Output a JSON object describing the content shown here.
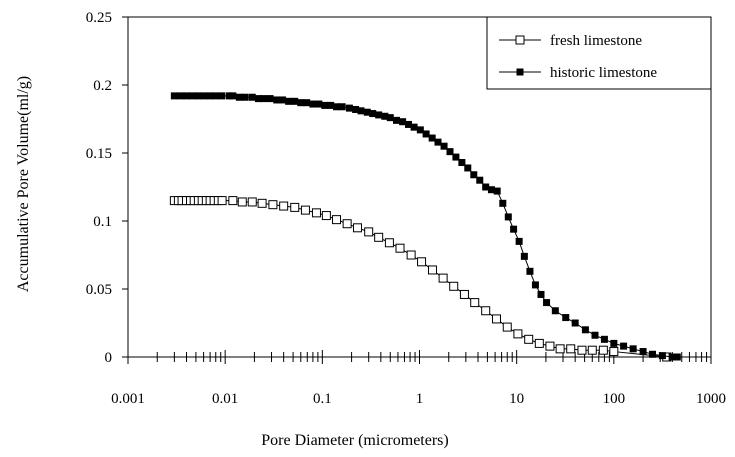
{
  "chart_data": {
    "type": "scatter",
    "title": "",
    "xlabel": "Pore Diameter (micrometers)",
    "ylabel": "Accumulative Pore Volume(ml/g)",
    "xscale": "log",
    "xlim": [
      0.001,
      1000
    ],
    "ylim": [
      0,
      0.25
    ],
    "grid": false,
    "legend_position": "top-right",
    "x_tick_labels": [
      "0.001",
      "0.01",
      "0.1",
      "1",
      "10",
      "100",
      "1000"
    ],
    "y_tick_labels": [
      "0",
      "0.05",
      "0.1",
      "0.15",
      "0.2",
      "0.25"
    ],
    "series": [
      {
        "name": "fresh limestone",
        "marker": "open-square",
        "color": "#000000",
        "points": [
          [
            0.003,
            0.115
          ],
          [
            0.0033,
            0.115
          ],
          [
            0.0036,
            0.115
          ],
          [
            0.004,
            0.115
          ],
          [
            0.0044,
            0.115
          ],
          [
            0.0048,
            0.115
          ],
          [
            0.0053,
            0.115
          ],
          [
            0.0058,
            0.115
          ],
          [
            0.0064,
            0.115
          ],
          [
            0.007,
            0.115
          ],
          [
            0.0077,
            0.115
          ],
          [
            0.0085,
            0.115
          ],
          [
            0.0093,
            0.115
          ],
          [
            0.012,
            0.115
          ],
          [
            0.015,
            0.114
          ],
          [
            0.019,
            0.114
          ],
          [
            0.024,
            0.113
          ],
          [
            0.031,
            0.112
          ],
          [
            0.04,
            0.111
          ],
          [
            0.052,
            0.11
          ],
          [
            0.067,
            0.108
          ],
          [
            0.087,
            0.106
          ],
          [
            0.11,
            0.104
          ],
          [
            0.14,
            0.101
          ],
          [
            0.18,
            0.098
          ],
          [
            0.23,
            0.095
          ],
          [
            0.3,
            0.092
          ],
          [
            0.38,
            0.088
          ],
          [
            0.49,
            0.084
          ],
          [
            0.63,
            0.08
          ],
          [
            0.82,
            0.075
          ],
          [
            1.05,
            0.07
          ],
          [
            1.36,
            0.064
          ],
          [
            1.75,
            0.058
          ],
          [
            2.25,
            0.052
          ],
          [
            2.9,
            0.046
          ],
          [
            3.7,
            0.04
          ],
          [
            4.8,
            0.034
          ],
          [
            6.2,
            0.028
          ],
          [
            8.0,
            0.022
          ],
          [
            10.3,
            0.017
          ],
          [
            13.3,
            0.013
          ],
          [
            17.1,
            0.01
          ],
          [
            22,
            0.008
          ],
          [
            28,
            0.006
          ],
          [
            36,
            0.006
          ],
          [
            47,
            0.005
          ],
          [
            60,
            0.005
          ],
          [
            78,
            0.005
          ],
          [
            100,
            0.004
          ],
          [
            350,
            0.0
          ]
        ]
      },
      {
        "name": "historic limestone",
        "marker": "filled-square",
        "color": "#000000",
        "points": [
          [
            0.003,
            0.192
          ],
          [
            0.0035,
            0.192
          ],
          [
            0.004,
            0.192
          ],
          [
            0.0046,
            0.192
          ],
          [
            0.0053,
            0.192
          ],
          [
            0.0061,
            0.192
          ],
          [
            0.007,
            0.192
          ],
          [
            0.008,
            0.192
          ],
          [
            0.0092,
            0.192
          ],
          [
            0.011,
            0.192
          ],
          [
            0.012,
            0.192
          ],
          [
            0.014,
            0.191
          ],
          [
            0.016,
            0.191
          ],
          [
            0.019,
            0.191
          ],
          [
            0.022,
            0.19
          ],
          [
            0.025,
            0.19
          ],
          [
            0.029,
            0.19
          ],
          [
            0.034,
            0.189
          ],
          [
            0.039,
            0.189
          ],
          [
            0.045,
            0.188
          ],
          [
            0.052,
            0.188
          ],
          [
            0.06,
            0.187
          ],
          [
            0.069,
            0.187
          ],
          [
            0.08,
            0.186
          ],
          [
            0.092,
            0.186
          ],
          [
            0.106,
            0.185
          ],
          [
            0.122,
            0.185
          ],
          [
            0.14,
            0.184
          ],
          [
            0.16,
            0.184
          ],
          [
            0.19,
            0.183
          ],
          [
            0.22,
            0.182
          ],
          [
            0.25,
            0.181
          ],
          [
            0.29,
            0.18
          ],
          [
            0.33,
            0.179
          ],
          [
            0.38,
            0.178
          ],
          [
            0.44,
            0.177
          ],
          [
            0.5,
            0.176
          ],
          [
            0.58,
            0.174
          ],
          [
            0.67,
            0.173
          ],
          [
            0.77,
            0.171
          ],
          [
            0.88,
            0.169
          ],
          [
            1.02,
            0.167
          ],
          [
            1.17,
            0.164
          ],
          [
            1.35,
            0.161
          ],
          [
            1.55,
            0.158
          ],
          [
            1.79,
            0.155
          ],
          [
            2.06,
            0.151
          ],
          [
            2.37,
            0.147
          ],
          [
            2.73,
            0.143
          ],
          [
            3.14,
            0.139
          ],
          [
            3.62,
            0.134
          ],
          [
            4.17,
            0.13
          ],
          [
            4.8,
            0.125
          ],
          [
            5.5,
            0.123
          ],
          [
            6.3,
            0.122
          ],
          [
            7.2,
            0.113
          ],
          [
            8.2,
            0.103
          ],
          [
            9.3,
            0.094
          ],
          [
            10.6,
            0.085
          ],
          [
            12.0,
            0.074
          ],
          [
            13.7,
            0.063
          ],
          [
            15.6,
            0.053
          ],
          [
            17.8,
            0.046
          ],
          [
            20.3,
            0.04
          ],
          [
            25,
            0.034
          ],
          [
            32,
            0.029
          ],
          [
            40,
            0.025
          ],
          [
            51,
            0.02
          ],
          [
            64,
            0.016
          ],
          [
            80,
            0.013
          ],
          [
            100,
            0.01
          ],
          [
            126,
            0.008
          ],
          [
            158,
            0.006
          ],
          [
            200,
            0.004
          ],
          [
            250,
            0.002
          ],
          [
            316,
            0.001
          ],
          [
            398,
            0.0
          ],
          [
            450,
            0.0
          ]
        ]
      }
    ]
  }
}
